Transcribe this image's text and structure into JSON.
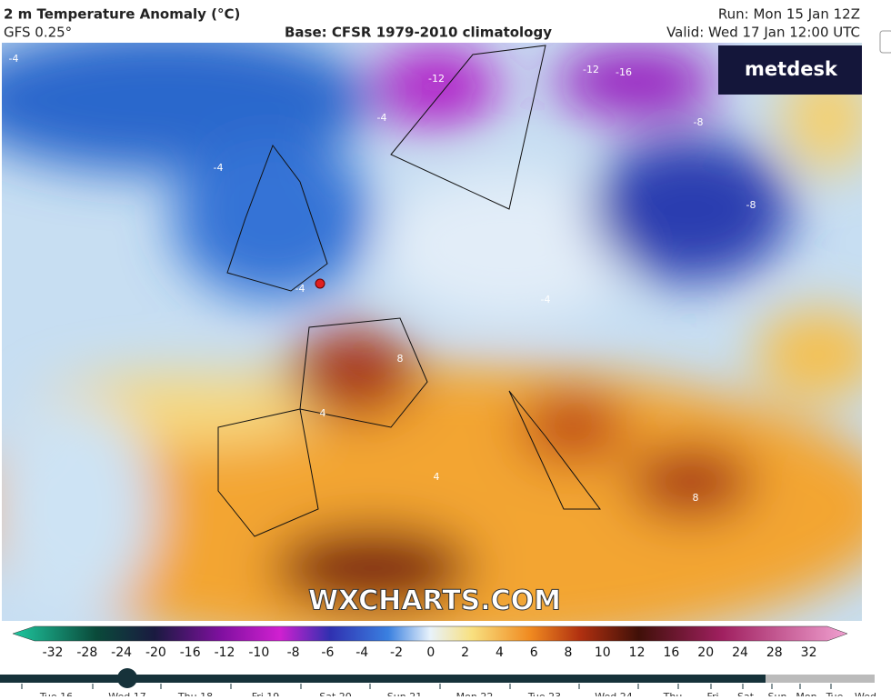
{
  "header": {
    "title": "2 m Temperature Anomaly (°C)",
    "model": "GFS 0.25°",
    "base": "Base: CFSR 1979-2010 climatology",
    "run": "Run: Mon 15 Jan 12Z",
    "valid": "Valid: Wed 17 Jan 12:00 UTC"
  },
  "logo": "metdesk",
  "watermark": "WXCHARTS.COM",
  "map": {
    "contour_labels": [
      "-4",
      "-12",
      "-12",
      "-16",
      "-8",
      "-8",
      "-4",
      "-4",
      "-4",
      "8",
      "4",
      "4",
      "8",
      "-4"
    ]
  },
  "colorbar": {
    "ticks": [
      -32,
      -28,
      -24,
      -20,
      -16,
      -12,
      -10,
      -8,
      -6,
      -4,
      -2,
      0,
      2,
      4,
      6,
      8,
      10,
      12,
      16,
      20,
      24,
      28,
      32
    ]
  },
  "timeline": {
    "labels": [
      "Tue 16",
      "Wed 17",
      "Thu 18",
      "Fri 19",
      "Sat 20",
      "Sun 21",
      "Mon 22",
      "Tue 23",
      "Wed 24",
      "Thu",
      "Fri",
      "Sat",
      "Sun",
      "Mon",
      "Tue",
      "Wed"
    ]
  }
}
